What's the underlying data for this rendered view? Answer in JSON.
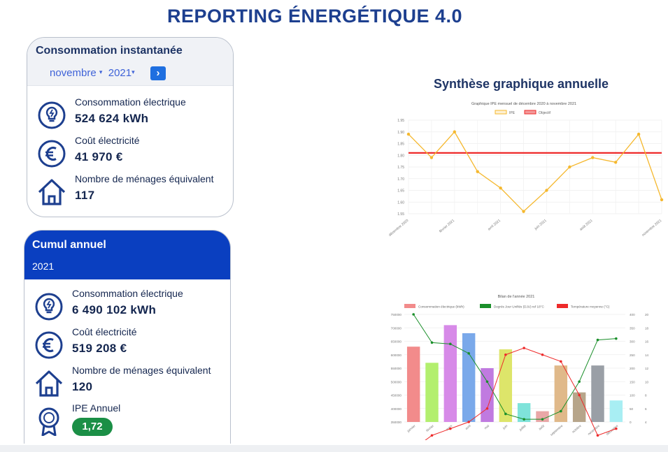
{
  "page": {
    "title": "REPORTING ÉNERGÉTIQUE 4.0"
  },
  "instant": {
    "title": "Consommation instantanée",
    "month": "novembre",
    "year": "2021",
    "next_label": "›",
    "stats": [
      {
        "icon": "lightbulb-icon",
        "label": "Consommation électrique",
        "value": "524 624 kWh"
      },
      {
        "icon": "euro-icon",
        "label": "Coût électricité",
        "value": "41 970 €"
      },
      {
        "icon": "house-icon",
        "label": "Nombre de ménages équivalent",
        "value": "117"
      }
    ]
  },
  "cumul": {
    "title": "Cumul annuel",
    "year": "2021",
    "stats": [
      {
        "icon": "lightbulb-icon",
        "label": "Consommation électrique",
        "value": "6 490 102 kWh"
      },
      {
        "icon": "euro-icon",
        "label": "Coût électricité",
        "value": "519 208 €"
      },
      {
        "icon": "house-icon",
        "label": "Nombre de ménages équivalent",
        "value": "120"
      },
      {
        "icon": "award-icon",
        "label": "IPE Annuel",
        "value": "1,72"
      }
    ]
  },
  "synthese": {
    "title": "Synthèse graphique annuelle"
  },
  "chart_data": [
    {
      "type": "line",
      "title": "Graphique IPE mensuel de décembre 2020 à novembre 2021",
      "legend": [
        "IPE",
        "Objectif"
      ],
      "legend_position": "top",
      "x_tick_labels": [
        "décembre 2020",
        "février 2021",
        "avril 2021",
        "juin 2021",
        "août 2021",
        "novembre 2021"
      ],
      "x": [
        "décembre 2020",
        "janvier 2021",
        "février 2021",
        "mars 2021",
        "avril 2021",
        "mai 2021",
        "juin 2021",
        "juillet 2021",
        "août 2021",
        "septembre 2021",
        "octobre 2021",
        "novembre 2021"
      ],
      "series": [
        {
          "name": "IPE",
          "color": "#f5b82e",
          "values": [
            1.89,
            1.79,
            1.9,
            1.73,
            1.66,
            1.56,
            1.65,
            1.75,
            1.79,
            1.77,
            1.89,
            1.61
          ]
        },
        {
          "name": "Objectif",
          "color": "#ee2a2a",
          "values": [
            1.81,
            1.81,
            1.81,
            1.81,
            1.81,
            1.81,
            1.81,
            1.81,
            1.81,
            1.81,
            1.81,
            1.81
          ]
        }
      ],
      "y_ticks": [
        "1.95",
        "1.90",
        "1.85",
        "1.80",
        "1.75",
        "1.70",
        "1.65",
        "1.60",
        "1.55"
      ],
      "ylim": [
        1.55,
        1.95
      ],
      "grid": true
    },
    {
      "type": "bar",
      "title": "Bilan de l'année 2021",
      "legend": [
        "Consommation électrique (kWh)",
        "Degrés Jour Unifiés (DJU) ref 18°C",
        "Température moyenne (°C)"
      ],
      "legend_position": "top",
      "categories": [
        "janvier",
        "février",
        "mars",
        "avril",
        "mai",
        "juin",
        "juillet",
        "août",
        "septembre",
        "octobre",
        "novembre",
        "décembre"
      ],
      "bar_colors": [
        "#f28b8b",
        "#b3ef6e",
        "#d78ae8",
        "#7aa9ea",
        "#c07ae0",
        "#dde56a",
        "#7fe3da",
        "#e9a7a7",
        "#e0b98a",
        "#b7a58a",
        "#9a9fa6",
        "#a8eef3"
      ],
      "series": [
        {
          "name": "Consommation électrique (kWh)",
          "axis": "left",
          "values": [
            630000,
            570000,
            710000,
            680000,
            550000,
            620000,
            420000,
            390000,
            560000,
            460000,
            560000,
            430000
          ]
        },
        {
          "name": "Degrés Jour Unifiés (DJU) ref 18°C",
          "axis": "right",
          "color": "#1a8f2a",
          "values": [
            400,
            295,
            290,
            255,
            150,
            30,
            10,
            10,
            40,
            150,
            305,
            310
          ]
        },
        {
          "name": "Température moyenne (°C)",
          "axis": "right2",
          "color": "#ee2a2a",
          "values": [
            0,
            2,
            3,
            4,
            6,
            14,
            15,
            14,
            13,
            8,
            2,
            3
          ]
        }
      ],
      "y_ticks_left": [
        "750000",
        "700000",
        "650000",
        "600000",
        "550000",
        "500000",
        "450000",
        "400000",
        "350000"
      ],
      "y_ticks_right": [
        "400",
        "350",
        "300",
        "250",
        "200",
        "150",
        "100",
        "50",
        "0"
      ],
      "y_ticks_right2": [
        "20",
        "18",
        "16",
        "14",
        "12",
        "10",
        "8",
        "6",
        "4"
      ],
      "ylim_left": [
        350000,
        750000
      ],
      "ylim_right": [
        0,
        400
      ],
      "ylim_right2": [
        4,
        20
      ],
      "grid": true
    }
  ]
}
